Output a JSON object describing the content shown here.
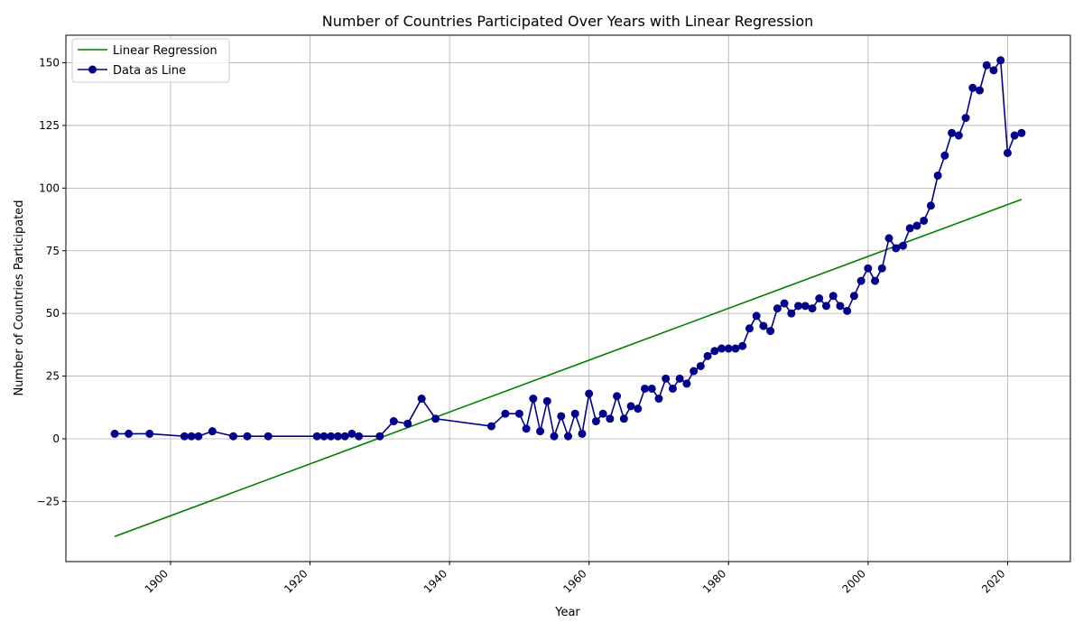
{
  "chart_data": {
    "type": "line",
    "title": "Number of Countries Participated Over Years with Linear Regression",
    "xlabel": "Year",
    "ylabel": "Number of Countries Participated",
    "xlim": [
      1885,
      2029
    ],
    "ylim": [
      -49,
      161
    ],
    "x_ticks": [
      1900,
      1920,
      1940,
      1960,
      1980,
      2000,
      2020
    ],
    "y_ticks": [
      -25,
      0,
      25,
      50,
      75,
      100,
      125,
      150
    ],
    "grid": true,
    "legend_position": "top-left",
    "series": [
      {
        "name": "Linear Regression",
        "color": "#008000",
        "style": "line",
        "x": [
          1892,
          2022
        ],
        "y": [
          -39,
          95.5
        ]
      },
      {
        "name": "Data as Line",
        "color": "#00008B",
        "style": "line-marker",
        "x": [
          1892,
          1894,
          1897,
          1902,
          1903,
          1904,
          1906,
          1909,
          1911,
          1914,
          1921,
          1922,
          1923,
          1924,
          1925,
          1926,
          1927,
          1930,
          1932,
          1934,
          1936,
          1938,
          1946,
          1948,
          1950,
          1951,
          1952,
          1953,
          1954,
          1955,
          1956,
          1957,
          1958,
          1959,
          1960,
          1961,
          1962,
          1963,
          1964,
          1965,
          1966,
          1967,
          1968,
          1969,
          1970,
          1971,
          1972,
          1973,
          1974,
          1975,
          1976,
          1977,
          1978,
          1979,
          1980,
          1981,
          1982,
          1983,
          1984,
          1985,
          1986,
          1987,
          1988,
          1989,
          1990,
          1991,
          1992,
          1993,
          1994,
          1995,
          1996,
          1997,
          1998,
          1999,
          2000,
          2001,
          2002,
          2003,
          2004,
          2005,
          2006,
          2007,
          2008,
          2009,
          2010,
          2011,
          2012,
          2013,
          2014,
          2015,
          2016,
          2017,
          2018,
          2019,
          2020,
          2021,
          2022
        ],
        "y": [
          2,
          2,
          2,
          1,
          1,
          1,
          3,
          1,
          1,
          1,
          1,
          1,
          1,
          1,
          1,
          2,
          1,
          1,
          7,
          6,
          16,
          8,
          5,
          10,
          10,
          4,
          16,
          3,
          15,
          1,
          9,
          1,
          10,
          2,
          18,
          7,
          10,
          8,
          17,
          8,
          13,
          12,
          20,
          20,
          16,
          24,
          20,
          24,
          22,
          27,
          29,
          33,
          35,
          36,
          36,
          36,
          37,
          44,
          49,
          45,
          43,
          52,
          54,
          50,
          53,
          53,
          52,
          56,
          53,
          57,
          53,
          51,
          57,
          63,
          68,
          63,
          68,
          80,
          76,
          77,
          84,
          85,
          87,
          93,
          105,
          113,
          122,
          121,
          128,
          140,
          139,
          149,
          147,
          151,
          114,
          121,
          122
        ]
      }
    ]
  }
}
